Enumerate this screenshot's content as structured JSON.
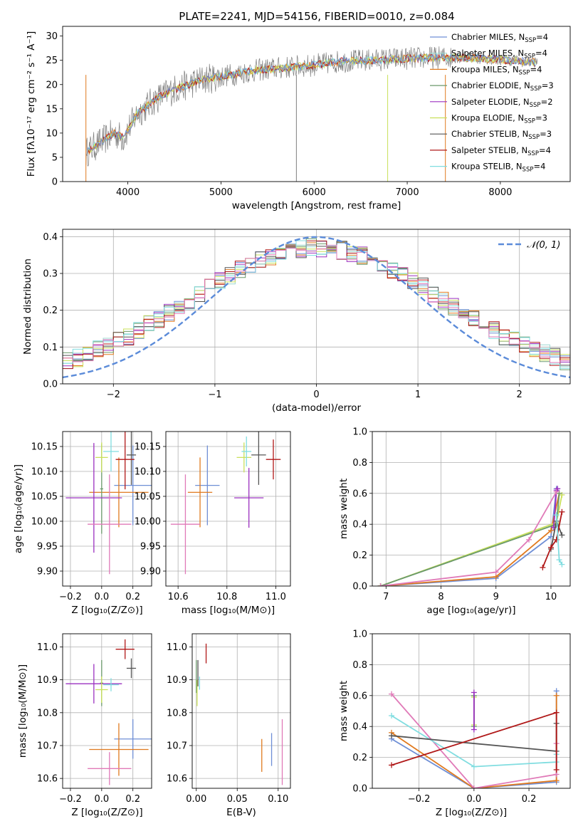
{
  "figure_title": "PLATE=2241, MJD=54156, FIBERID=0010, z=0.084",
  "colors": {
    "Chabrier MILES": "#6f8fd6",
    "Salpeter MILES": "#9ed8d0",
    "Kroupa MILES": "#e07a1f",
    "Chabrier ELODIE": "#6b9a6b",
    "Salpeter ELODIE": "#9b30c0",
    "Kroupa ELODIE": "#c9e05a",
    "Chabrier STELIB": "#555555",
    "Salpeter STELIB": "#b01818",
    "Kroupa STELIB": "#80dde0",
    "spectrum": "#808080",
    "normal": "#5b8bd9",
    "pink": "#e07ab8"
  },
  "chart_data": [
    {
      "id": "spectrum",
      "type": "line",
      "title": "PLATE=2241, MJD=54156, FIBERID=0010, z=0.084",
      "xlabel": "wavelength [Angstrom, rest frame]",
      "ylabel": "Flux [fλ10⁻¹⁷ erg cm⁻² s⁻¹ A⁻¹]",
      "xlim": [
        3300,
        8750
      ],
      "ylim": [
        0,
        32
      ],
      "xticks": [
        4000,
        5000,
        6000,
        7000,
        8000
      ],
      "yticks": [
        0,
        5,
        10,
        15,
        20,
        25,
        30
      ],
      "legend_position": "right",
      "legend": [
        "Chabrier MILES, N_SSP=4",
        "Salpeter MILES, N_SSP=4",
        "Kroupa MILES, N_SSP=4",
        "Chabrier ELODIE, N_SSP=3",
        "Salpeter ELODIE, N_SSP=2",
        "Kroupa ELODIE, N_SSP=3",
        "Chabrier STELIB, N_SSP=3",
        "Salpeter STELIB, N_SSP=4",
        "Kroupa STELIB, N_SSP=4"
      ],
      "legend_parts": [
        [
          "Chabrier MILES, N",
          "SSP",
          "=4"
        ],
        [
          "Salpeter MILES, N",
          "SSP",
          "=4"
        ],
        [
          "Kroupa MILES, N",
          "SSP",
          "=4"
        ],
        [
          "Chabrier ELODIE, N",
          "SSP",
          "=3"
        ],
        [
          "Salpeter ELODIE, N",
          "SSP",
          "=2"
        ],
        [
          "Kroupa ELODIE, N",
          "SSP",
          "=3"
        ],
        [
          "Chabrier STELIB, N",
          "SSP",
          "=3"
        ],
        [
          "Salpeter STELIB, N",
          "SSP",
          "=4"
        ],
        [
          "Kroupa STELIB, N",
          "SSP",
          "=4"
        ]
      ],
      "continuum": {
        "x": [
          3550,
          3700,
          3850,
          3950,
          4100,
          4300,
          4500,
          4800,
          5100,
          5400,
          5700,
          6000,
          6300,
          6600,
          6900,
          7200,
          7500,
          7800,
          8100,
          8400
        ],
        "y": [
          6,
          8,
          10,
          9,
          14,
          17,
          19,
          21,
          22,
          23,
          23.5,
          24,
          24.8,
          25,
          25.3,
          25.5,
          25.6,
          25.4,
          25,
          24.5
        ]
      }
    },
    {
      "id": "residuals",
      "type": "line",
      "xlabel": "(data-model)/error",
      "ylabel": "Normed distribution",
      "xlim": [
        -2.5,
        2.5
      ],
      "ylim": [
        0,
        0.42
      ],
      "xticks": [
        -2,
        -1,
        0,
        1,
        2
      ],
      "yticks": [
        0.0,
        0.1,
        0.2,
        0.3,
        0.4
      ],
      "legend_position": "top-right",
      "legend": [
        "N(0,1)"
      ],
      "legend_text": "𝒩(0, 1)",
      "series_note": "normal curve mean 0, sigma 1"
    },
    {
      "id": "age_vs_Z",
      "type": "scatter",
      "xlabel": "Z [log₁₀(Z/Z⊙)]",
      "ylabel": "age  [log₁₀(age/yr)]",
      "xlim": [
        -0.25,
        0.32
      ],
      "ylim": [
        9.87,
        10.18
      ],
      "xticks": [
        -0.2,
        0.0,
        0.2
      ],
      "yticks": [
        9.9,
        9.95,
        10.0,
        10.05,
        10.1,
        10.15
      ],
      "points": [
        {
          "model": "Chabrier MILES",
          "x": 0.2,
          "xerr": 0.12,
          "y": 10.072,
          "yerr": 0.08
        },
        {
          "model": "Kroupa MILES",
          "x": 0.11,
          "xerr": 0.19,
          "y": 10.058,
          "yerr": 0.07
        },
        {
          "model": "Chabrier ELODIE",
          "x": 0.0,
          "xerr": 0.01,
          "y": 10.065,
          "yerr": 0.09
        },
        {
          "model": "Salpeter ELODIE",
          "x": -0.05,
          "xerr": 0.18,
          "y": 10.047,
          "yerr": 0.11
        },
        {
          "model": "Kroupa ELODIE",
          "x": 0.0,
          "xerr": 0.04,
          "y": 10.128,
          "yerr": 0.03
        },
        {
          "model": "Chabrier STELIB",
          "x": 0.19,
          "xerr": 0.03,
          "y": 10.133,
          "yerr": 0.06
        },
        {
          "model": "Salpeter STELIB",
          "x": 0.15,
          "xerr": 0.06,
          "y": 10.124,
          "yerr": 0.06
        },
        {
          "model": "Kroupa STELIB",
          "x": 0.06,
          "xerr": 0.05,
          "y": 10.14,
          "yerr": 0.04
        },
        {
          "model": "pink",
          "x": 0.05,
          "xerr": 0.14,
          "y": 9.994,
          "yerr": 0.1
        }
      ]
    },
    {
      "id": "age_vs_mass",
      "type": "scatter",
      "xlabel": "mass [log₁₀(M/M⊙)]",
      "xlim": [
        10.55,
        11.06
      ],
      "ylim": [
        9.87,
        10.18
      ],
      "xticks": [
        10.6,
        10.8,
        11.0
      ],
      "yticks": [
        9.9,
        9.95,
        10.0,
        10.05,
        10.1,
        10.15
      ],
      "points": [
        {
          "model": "Chabrier MILES",
          "x": 10.72,
          "xerr": 0.05,
          "y": 10.072,
          "yerr": 0.08
        },
        {
          "model": "Kroupa MILES",
          "x": 10.69,
          "xerr": 0.05,
          "y": 10.058,
          "yerr": 0.07
        },
        {
          "model": "Salpeter ELODIE",
          "x": 10.89,
          "xerr": 0.06,
          "y": 10.047,
          "yerr": 0.06
        },
        {
          "model": "Kroupa ELODIE",
          "x": 10.87,
          "xerr": 0.03,
          "y": 10.128,
          "yerr": 0.03
        },
        {
          "model": "Chabrier STELIB",
          "x": 10.93,
          "xerr": 0.03,
          "y": 10.133,
          "yerr": 0.06
        },
        {
          "model": "Salpeter STELIB",
          "x": 10.99,
          "xerr": 0.03,
          "y": 10.124,
          "yerr": 0.04
        },
        {
          "model": "Kroupa STELIB",
          "x": 10.88,
          "xerr": 0.02,
          "y": 10.14,
          "yerr": 0.03
        },
        {
          "model": "pink",
          "x": 10.63,
          "xerr": 0.06,
          "y": 9.994,
          "yerr": 0.1
        }
      ]
    },
    {
      "id": "weight_vs_age",
      "type": "line",
      "xlabel": "age  [log₁₀(age/yr)]",
      "ylabel": "mass weight",
      "xlim": [
        6.75,
        10.35
      ],
      "ylim": [
        0,
        1
      ],
      "xticks": [
        7,
        8,
        9,
        10
      ],
      "yticks": [
        0.0,
        0.2,
        0.4,
        0.6,
        0.8,
        1.0
      ],
      "series": [
        {
          "model": "Chabrier MILES",
          "x": [
            6.9,
            9.0,
            10.0,
            10.1
          ],
          "y": [
            0.0,
            0.05,
            0.32,
            0.63
          ]
        },
        {
          "model": "Kroupa MILES",
          "x": [
            6.9,
            9.0,
            10.0,
            10.15
          ],
          "y": [
            0.0,
            0.06,
            0.36,
            0.6
          ]
        },
        {
          "model": "Kroupa ELODIE",
          "x": [
            6.9,
            10.1,
            10.2
          ],
          "y": [
            0.0,
            0.41,
            0.59
          ]
        },
        {
          "model": "Chabrier ELODIE",
          "x": [
            6.9,
            10.1,
            10.15
          ],
          "y": [
            0.0,
            0.4,
            0.6
          ]
        },
        {
          "model": "Salpeter ELODIE",
          "x": [
            10.05,
            10.1,
            10.12
          ],
          "y": [
            0.38,
            0.62,
            0.63
          ]
        },
        {
          "model": "pink",
          "x": [
            6.9,
            9.0,
            9.6,
            10.1
          ],
          "y": [
            0.0,
            0.09,
            0.3,
            0.61
          ]
        },
        {
          "model": "Chabrier STELIB",
          "x": [
            10.0,
            10.1,
            10.2
          ],
          "y": [
            0.24,
            0.42,
            0.33
          ]
        },
        {
          "model": "Salpeter STELIB",
          "x": [
            9.85,
            10.0,
            10.1,
            10.2
          ],
          "y": [
            0.12,
            0.25,
            0.3,
            0.48
          ]
        },
        {
          "model": "Kroupa STELIB",
          "x": [
            10.1,
            10.15,
            10.2
          ],
          "y": [
            0.46,
            0.17,
            0.14
          ]
        }
      ]
    },
    {
      "id": "mass_vs_Z",
      "type": "scatter",
      "xlabel": "Z [log₁₀(Z/Z⊙)]",
      "ylabel": "mass [log₁₀(M/M⊙)]",
      "xlim": [
        -0.25,
        0.32
      ],
      "ylim": [
        10.57,
        11.04
      ],
      "xticks": [
        -0.2,
        0.0,
        0.2
      ],
      "yticks": [
        10.6,
        10.7,
        10.8,
        10.9,
        11.0
      ],
      "points": [
        {
          "model": "Chabrier MILES",
          "x": 0.2,
          "xerr": 0.12,
          "y": 10.72,
          "yerr": 0.06
        },
        {
          "model": "Kroupa MILES",
          "x": 0.11,
          "xerr": 0.19,
          "y": 10.688,
          "yerr": 0.08
        },
        {
          "model": "Chabrier ELODIE",
          "x": 0.0,
          "xerr": 0.01,
          "y": 10.89,
          "yerr": 0.07
        },
        {
          "model": "Salpeter ELODIE",
          "x": -0.05,
          "xerr": 0.18,
          "y": 10.888,
          "yerr": 0.06
        },
        {
          "model": "Kroupa ELODIE",
          "x": 0.0,
          "xerr": 0.04,
          "y": 10.87,
          "yerr": 0.04
        },
        {
          "model": "Chabrier STELIB",
          "x": 0.19,
          "xerr": 0.03,
          "y": 10.935,
          "yerr": 0.03
        },
        {
          "model": "Salpeter STELIB",
          "x": 0.15,
          "xerr": 0.06,
          "y": 10.993,
          "yerr": 0.03
        },
        {
          "model": "Kroupa STELIB",
          "x": 0.06,
          "xerr": 0.05,
          "y": 10.885,
          "yerr": 0.02
        },
        {
          "model": "pink",
          "x": 0.05,
          "xerr": 0.14,
          "y": 10.63,
          "yerr": 0.05
        }
      ]
    },
    {
      "id": "mass_vs_ebv",
      "type": "scatter",
      "xlabel": "E(B-V)",
      "xlim": [
        -0.005,
        0.115
      ],
      "ylim": [
        10.57,
        11.04
      ],
      "xticks": [
        0.0,
        0.05,
        0.1
      ],
      "yticks": [
        10.6,
        10.7,
        10.8,
        10.9,
        11.0
      ],
      "points": [
        {
          "model": "Chabrier MILES",
          "x": 0.092,
          "y": 10.688,
          "yerr": 0.05
        },
        {
          "model": "Kroupa MILES",
          "x": 0.08,
          "y": 10.67,
          "yerr": 0.05
        },
        {
          "model": "pink",
          "x": 0.105,
          "y": 10.68,
          "yerr": 0.1
        },
        {
          "model": "Chabrier ELODIE",
          "x": 0.0,
          "y": 10.91,
          "yerr": 0.05
        },
        {
          "model": "Kroupa ELODIE",
          "x": 0.001,
          "y": 10.86,
          "yerr": 0.04
        },
        {
          "model": "Chabrier STELIB",
          "x": 0.002,
          "y": 10.92,
          "yerr": 0.04
        },
        {
          "model": "Salpeter STELIB",
          "x": 0.012,
          "y": 10.98,
          "yerr": 0.03
        },
        {
          "model": "Kroupa STELIB",
          "x": 0.004,
          "y": 10.89,
          "yerr": 0.02
        }
      ]
    },
    {
      "id": "weight_vs_Z",
      "type": "line",
      "xlabel": "Z [log₁₀(Z/Z⊙)]",
      "ylabel": "mass weight",
      "xlim": [
        -0.37,
        0.35
      ],
      "ylim": [
        0,
        1
      ],
      "xticks": [
        -0.2,
        0.0,
        0.2
      ],
      "yticks": [
        0.0,
        0.2,
        0.4,
        0.6,
        0.8,
        1.0
      ],
      "series": [
        {
          "model": "Chabrier MILES",
          "x": [
            -0.3,
            0.0,
            0.3,
            0.3
          ],
          "y": [
            0.32,
            0.0,
            0.04,
            0.63
          ]
        },
        {
          "model": "Kroupa MILES",
          "x": [
            -0.3,
            0.0,
            0.3,
            0.3
          ],
          "y": [
            0.36,
            0.0,
            0.05,
            0.6
          ]
        },
        {
          "model": "pink",
          "x": [
            -0.3,
            0.0,
            0.3,
            0.3
          ],
          "y": [
            0.61,
            0.0,
            0.09,
            0.29
          ]
        },
        {
          "model": "Kroupa STELIB",
          "x": [
            -0.3,
            0.0,
            0.3,
            0.3
          ],
          "y": [
            0.47,
            0.14,
            0.17,
            0.22
          ]
        },
        {
          "model": "Chabrier STELIB",
          "x": [
            -0.3,
            0.3,
            0.3
          ],
          "y": [
            0.34,
            0.24,
            0.42
          ]
        },
        {
          "model": "Salpeter STELIB",
          "x": [
            -0.3,
            0.3,
            0.3
          ],
          "y": [
            0.15,
            0.49,
            0.12
          ]
        },
        {
          "model": "Kroupa ELODIE",
          "x": [
            0.0,
            0.0
          ],
          "y": [
            0.41,
            0.59
          ]
        },
        {
          "model": "Chabrier ELODIE",
          "x": [
            0.0,
            0.0
          ],
          "y": [
            0.4,
            0.6
          ]
        },
        {
          "model": "Salpeter ELODIE",
          "x": [
            0.0,
            0.0
          ],
          "y": [
            0.38,
            0.62
          ]
        }
      ]
    }
  ]
}
